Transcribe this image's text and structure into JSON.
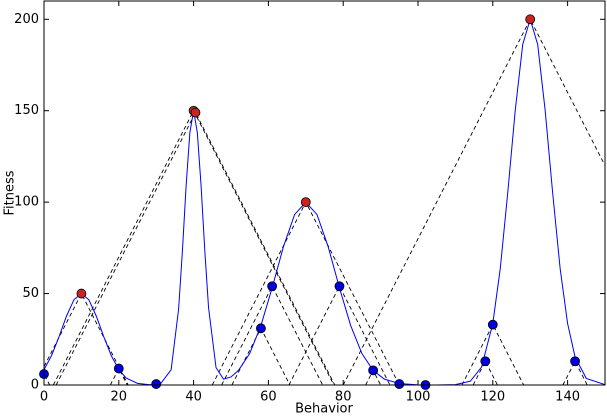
{
  "chart_data": {
    "type": "line",
    "x_label": "Behavior",
    "y_label": "Fitness",
    "xlim": [
      0,
      150
    ],
    "ylim": [
      0,
      210
    ],
    "xticks": [
      0,
      20,
      40,
      60,
      80,
      100,
      120,
      140
    ],
    "yticks": [
      0,
      50,
      100,
      150,
      200
    ],
    "series": [
      {
        "color": "#0000ff",
        "x": [
          0,
          2,
          4,
          6,
          8,
          10,
          12,
          14,
          16,
          18,
          20,
          22,
          25,
          28,
          31,
          34,
          36,
          37,
          38,
          39,
          40,
          41,
          42,
          43,
          44,
          46,
          48,
          50,
          52,
          55,
          58,
          61,
          64,
          67,
          70,
          73,
          76,
          79,
          82,
          85,
          88,
          91,
          95,
          100,
          105,
          110,
          114,
          117,
          120,
          122,
          124,
          126,
          128,
          130,
          132,
          134,
          136,
          138,
          140,
          142,
          145,
          150
        ],
        "values": [
          8.4,
          16.0,
          26.3,
          37.6,
          46.6,
          50,
          46.6,
          37.6,
          26.3,
          16.0,
          8.4,
          3.8,
          0.9,
          0.2,
          0.2,
          8.4,
          41.7,
          73,
          109,
          138,
          150,
          138,
          109,
          73.3,
          42.2,
          9.5,
          3.2,
          4.4,
          8.0,
          17.2,
          32.5,
          53.1,
          75.5,
          93.2,
          100,
          93.2,
          75.5,
          53.1,
          32.5,
          17.2,
          8.0,
          3.2,
          0.8,
          0.1,
          0,
          0.2,
          2.1,
          9.8,
          33.6,
          63.8,
          105.2,
          150.2,
          186.2,
          200,
          186.2,
          150.2,
          105.2,
          63.8,
          33.6,
          15.3,
          3.6,
          0.2
        ]
      }
    ],
    "points": [
      {
        "color": "#cc2222",
        "x": [
          10,
          40,
          40.5,
          70,
          130
        ],
        "values": [
          50,
          150,
          149,
          100,
          200
        ]
      },
      {
        "color": "#0000dd",
        "x": [
          0,
          20,
          30,
          58,
          61,
          79,
          88,
          95,
          102,
          118,
          120,
          142
        ],
        "values": [
          6,
          9,
          0.5,
          31,
          54,
          54,
          8,
          0.5,
          0,
          13,
          33,
          13
        ]
      }
    ],
    "cone_slope": 4
  }
}
